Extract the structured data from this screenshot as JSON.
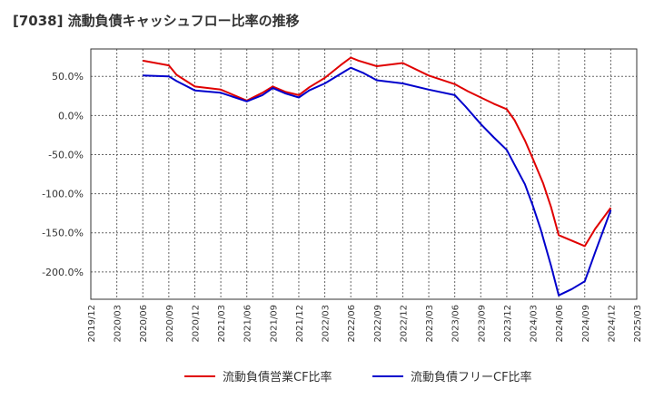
{
  "chart_data": {
    "type": "line",
    "title": "[7038]  流動負債キャッシュフロー比率の推移",
    "xlabel": "",
    "ylabel": "",
    "ylim": [
      -235,
      85
    ],
    "grid": true,
    "legend_position": "bottom",
    "y_ticks": [
      50,
      0,
      -50,
      -100,
      -150,
      -200
    ],
    "y_tick_labels": [
      "50.0%",
      "0.0%",
      "-50.0%",
      "-100.0%",
      "-150.0%",
      "-200.0%"
    ],
    "x_tick_labels": [
      "2019/12",
      "2020/03",
      "2020/06",
      "2020/09",
      "2020/12",
      "2021/03",
      "2021/06",
      "2021/09",
      "2021/12",
      "2022/03",
      "2022/06",
      "2022/09",
      "2022/12",
      "2023/03",
      "2023/06",
      "2023/09",
      "2023/12",
      "2024/03",
      "2024/06",
      "2024/09",
      "2024/12",
      "2025/03"
    ],
    "series": [
      {
        "name": "流動負債営業CF比率",
        "color": "#e00000",
        "points": [
          [
            2,
            70
          ],
          [
            3,
            64
          ],
          [
            3.3,
            52
          ],
          [
            4,
            37
          ],
          [
            5,
            33
          ],
          [
            6,
            19
          ],
          [
            6.6,
            29
          ],
          [
            7,
            37
          ],
          [
            7.5,
            30
          ],
          [
            8,
            26
          ],
          [
            8.4,
            36
          ],
          [
            9,
            48
          ],
          [
            9.6,
            64
          ],
          [
            10,
            74
          ],
          [
            10.3,
            70
          ],
          [
            11,
            63
          ],
          [
            12,
            67
          ],
          [
            13,
            51
          ],
          [
            14,
            40
          ],
          [
            14.5,
            31
          ],
          [
            15,
            23
          ],
          [
            15.5,
            15
          ],
          [
            16,
            8
          ],
          [
            16.3,
            -6
          ],
          [
            16.7,
            -32
          ],
          [
            17,
            -55
          ],
          [
            17.4,
            -87
          ],
          [
            17.7,
            -117
          ],
          [
            18,
            -153
          ],
          [
            19,
            -167
          ],
          [
            19.4,
            -145
          ],
          [
            20,
            -118
          ]
        ]
      },
      {
        "name": "流動負債フリーCF比率",
        "color": "#0000cc",
        "points": [
          [
            2,
            51
          ],
          [
            3,
            50
          ],
          [
            3.3,
            44
          ],
          [
            4,
            32
          ],
          [
            5,
            29
          ],
          [
            6,
            18
          ],
          [
            6.6,
            26
          ],
          [
            7,
            35
          ],
          [
            7.5,
            28
          ],
          [
            8,
            23
          ],
          [
            8.4,
            32
          ],
          [
            9,
            41
          ],
          [
            9.6,
            53
          ],
          [
            10,
            61
          ],
          [
            10.5,
            54
          ],
          [
            11,
            45
          ],
          [
            12,
            41
          ],
          [
            13,
            33
          ],
          [
            14,
            26
          ],
          [
            14.4,
            12
          ],
          [
            15,
            -11
          ],
          [
            15.5,
            -28
          ],
          [
            16,
            -44
          ],
          [
            16.3,
            -63
          ],
          [
            16.7,
            -88
          ],
          [
            17,
            -115
          ],
          [
            17.3,
            -145
          ],
          [
            17.7,
            -192
          ],
          [
            18,
            -230
          ],
          [
            18.5,
            -222
          ],
          [
            19,
            -212
          ],
          [
            19.4,
            -175
          ],
          [
            20,
            -121
          ]
        ]
      }
    ]
  }
}
